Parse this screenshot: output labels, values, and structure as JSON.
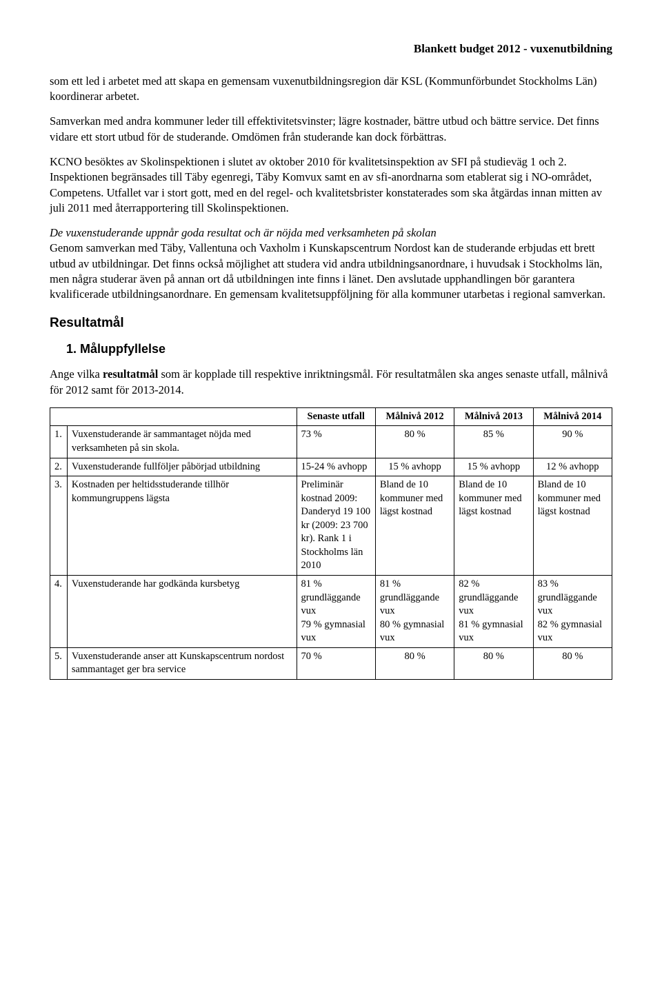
{
  "header": {
    "title": "Blankett budget 2012 - vuxenutbildning"
  },
  "paragraphs": {
    "p1": "som ett led i arbetet med att skapa en gemensam vuxenutbildningsregion där KSL (Kommunförbundet Stockholms Län) koordinerar arbetet.",
    "p2": "Samverkan med andra kommuner leder till effektivitetsvinster; lägre kostnader, bättre utbud och bättre service. Det finns vidare ett stort utbud för de studerande. Omdömen från studerande kan dock förbättras.",
    "p3": "KCNO besöktes av Skolinspektionen i slutet av oktober 2010 för kvalitetsinspektion av SFI på studieväg 1 och 2. Inspektionen begränsades till Täby egenregi, Täby Komvux samt en av sfi-anordnarna som etablerat sig i NO-området, Competens. Utfallet var i stort gott, med en del regel- och kvalitetsbrister konstaterades som ska åtgärdas innan mitten av juli 2011 med återrapportering till Skolinspektionen.",
    "p4_italic": "De vuxenstuderande uppnår goda resultat och är nöjda med verksamheten på skolan",
    "p4_cont": "Genom samverkan med Täby, Vallentuna och Vaxholm i Kunskapscentrum Nordost kan de studerande erbjudas ett brett utbud av utbildningar. Det finns också möjlighet att studera vid andra utbildningsanordnare, i huvudsak i Stockholms län, men några studerar även på annan ort då utbildningen inte finns i länet. Den avslutade upphandlingen bör garantera kvalificerade utbildningsanordnare. En gemensam kvalitetsuppföljning för alla kommuner utarbetas i regional samverkan."
  },
  "sections": {
    "resultatmal": "Resultatmål",
    "maluppfyllelse": "1. Måluppfyllelse"
  },
  "intro": {
    "prefix": "Ange vilka ",
    "bold": "resultatmål",
    "suffix": " som är kopplade till respektive inriktningsmål. För resultatmålen ska anges senaste utfall, målnivå för 2012 samt för 2013-2014."
  },
  "table": {
    "headers": {
      "c1": "",
      "c2": "",
      "c3": "Senaste utfall",
      "c4": "Målnivå 2012",
      "c5": "Målnivå 2013",
      "c6": "Målnivå 2014"
    },
    "rows": [
      {
        "n": "1.",
        "desc": "Vuxenstuderande är sammantaget nöjda med verksamheten på sin skola.",
        "v3": "73 %",
        "v4": "80 %",
        "v5": "85 %",
        "v6": "90 %"
      },
      {
        "n": "2.",
        "desc": "Vuxenstuderande fullföljer påbörjad utbildning",
        "v3": "15-24 % avhopp",
        "v4": "15 % avhopp",
        "v5": "15 % avhopp",
        "v6": "12 % avhopp"
      },
      {
        "n": "3.",
        "desc": "Kostnaden per heltidsstuderande tillhör kommungruppens lägsta",
        "v3": "Preliminär kostnad 2009: Danderyd 19 100 kr (2009: 23 700 kr). Rank 1 i Stockholms län 2010",
        "v4": "Bland de 10 kommuner med lägst kostnad",
        "v5": "Bland de 10 kommuner med lägst kostnad",
        "v6": "Bland de 10 kommuner med lägst kostnad"
      },
      {
        "n": "4.",
        "desc": "Vuxenstuderande har godkända kursbetyg",
        "v3": "81 % grundläggande vux\n79 % gymnasial vux",
        "v4": "81 % grundläggande vux\n80 % gymnasial vux",
        "v5": "82 % grundläggande vux\n81 % gymnasial vux",
        "v6": "83 % grundläggande vux\n82 % gymnasial vux"
      },
      {
        "n": "5.",
        "desc": "Vuxenstuderande anser att Kunskapscentrum nordost sammantaget ger bra service",
        "v3": "70 %",
        "v4": "80 %",
        "v5": "80 %",
        "v6": "80 %"
      }
    ]
  }
}
